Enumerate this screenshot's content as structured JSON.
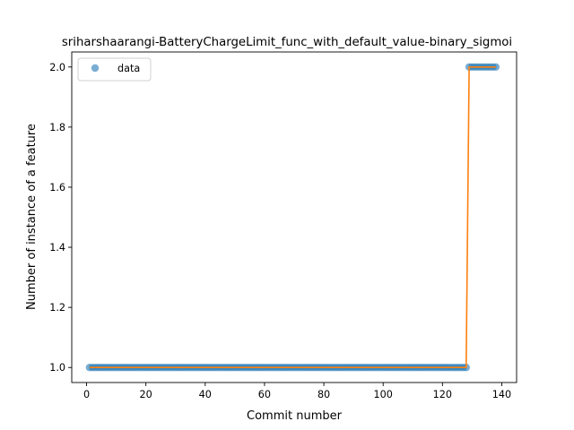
{
  "chart_data": {
    "type": "scatter",
    "title": "sriharshaarangi-BatteryChargeLimit_func_with_default_value-binary_sigmoi",
    "xlabel": "Commit number",
    "ylabel": "Number of instance of a feature",
    "xlim": [
      -5,
      145
    ],
    "ylim": [
      0.95,
      2.05
    ],
    "xticks": [
      0,
      20,
      40,
      60,
      80,
      100,
      120,
      140
    ],
    "yticks": [
      1.0,
      1.2,
      1.4,
      1.6,
      1.8,
      2.0
    ],
    "xtick_labels": [
      "0",
      "20",
      "40",
      "60",
      "80",
      "100",
      "120",
      "140"
    ],
    "ytick_labels": [
      "1.0",
      "1.2",
      "1.4",
      "1.6",
      "1.8",
      "2.0"
    ],
    "grid": false,
    "legend": {
      "position": "top-left",
      "entries": [
        "data"
      ]
    },
    "series": [
      {
        "name": "data",
        "kind": "points",
        "color": "#1f77b4",
        "segments": [
          {
            "x_start": 1,
            "x_end": 128,
            "y": 1
          },
          {
            "x_start": 129,
            "x_end": 138,
            "y": 2
          }
        ]
      },
      {
        "kind": "line",
        "color": "#ff7f0e",
        "x": [
          1,
          128,
          129,
          138
        ],
        "y": [
          1,
          1,
          2,
          2
        ]
      }
    ]
  }
}
